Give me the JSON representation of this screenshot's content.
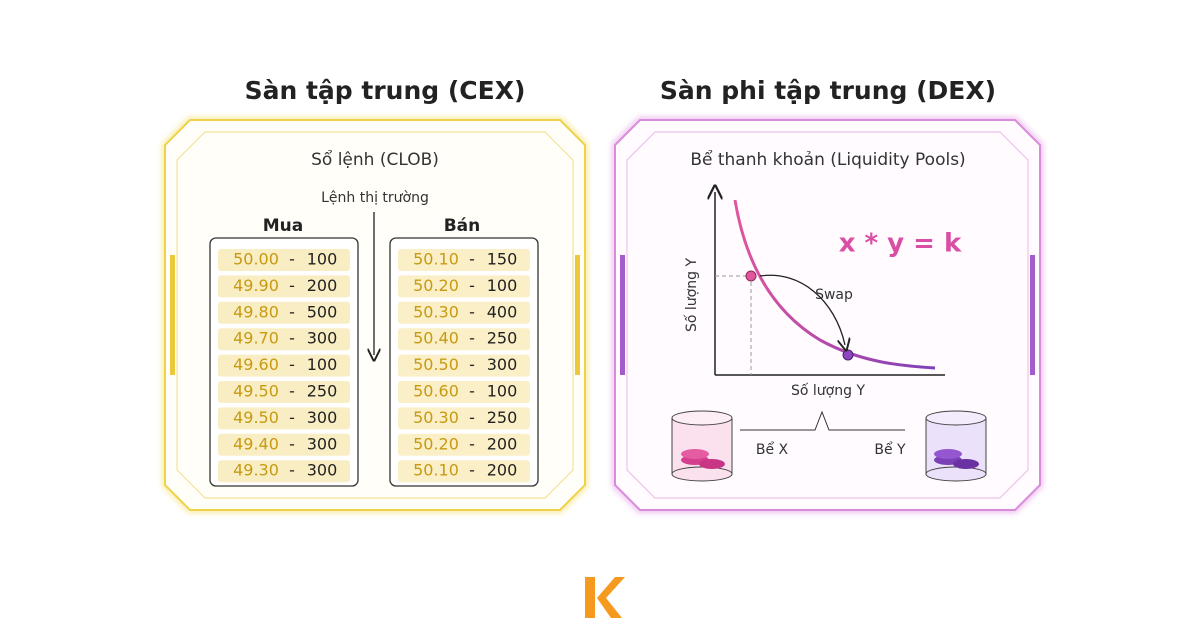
{
  "cex": {
    "title": "Sàn tập trung (CEX)",
    "subtitle": "Sổ lệnh (CLOB)",
    "arrow_label": "Lệnh thị trường",
    "separator": "-",
    "buy": {
      "header": "Mua",
      "rows": [
        {
          "price": "50.00",
          "qty": "100"
        },
        {
          "price": "49.90",
          "qty": "200"
        },
        {
          "price": "49.80",
          "qty": "500"
        },
        {
          "price": "49.70",
          "qty": "300"
        },
        {
          "price": "49.60",
          "qty": "100"
        },
        {
          "price": "49.50",
          "qty": "250"
        },
        {
          "price": "49.50",
          "qty": "300"
        },
        {
          "price": "49.40",
          "qty": "300"
        },
        {
          "price": "49.30",
          "qty": "300"
        }
      ]
    },
    "sell": {
      "header": "Bán",
      "rows": [
        {
          "price": "50.10",
          "qty": "150"
        },
        {
          "price": "50.20",
          "qty": "100"
        },
        {
          "price": "50.30",
          "qty": "400"
        },
        {
          "price": "50.40",
          "qty": "250"
        },
        {
          "price": "50.50",
          "qty": "300"
        },
        {
          "price": "50.60",
          "qty": "100"
        },
        {
          "price": "50.30",
          "qty": "250"
        },
        {
          "price": "50.20",
          "qty": "200"
        },
        {
          "price": "50.10",
          "qty": "200"
        }
      ]
    }
  },
  "dex": {
    "title": "Sàn phi tập trung (DEX)",
    "subtitle": "Bể thanh khoản (Liquidity Pools)",
    "formula": "x * y = k",
    "y_axis_label": "Số lượng Y",
    "x_axis_label": "Số lượng Y",
    "swap_label": "Swap",
    "pool_x": "Bể X",
    "pool_y": "Bể Y"
  }
}
